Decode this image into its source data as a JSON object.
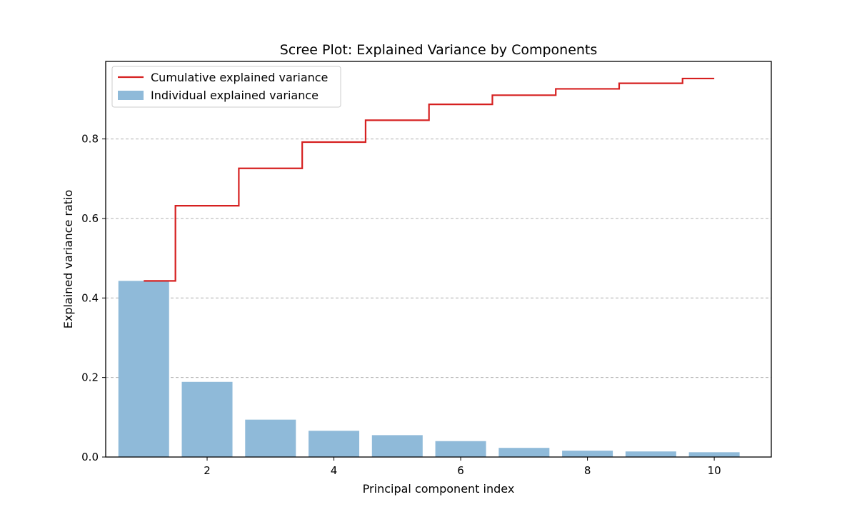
{
  "chart_data": {
    "type": "bar",
    "title": "Scree Plot: Explained Variance by Components",
    "xlabel": "Principal component index",
    "ylabel": "Explained variance ratio",
    "x": [
      1,
      2,
      3,
      4,
      5,
      6,
      7,
      8,
      9,
      10
    ],
    "xlim": [
      0.4,
      10.9
    ],
    "ylim": [
      0.0,
      0.995
    ],
    "xticks": [
      2,
      4,
      6,
      8,
      10
    ],
    "yticks": [
      0.0,
      0.2,
      0.4,
      0.6,
      0.8
    ],
    "ytick_labels": [
      "0.0",
      "0.2",
      "0.4",
      "0.6",
      "0.8"
    ],
    "grid": "y-dashed",
    "legend_position": "top-left",
    "series": [
      {
        "name": "Individual explained variance",
        "kind": "bar",
        "color": "#8fbad9",
        "values": [
          0.443,
          0.189,
          0.094,
          0.066,
          0.055,
          0.04,
          0.023,
          0.016,
          0.014,
          0.012
        ]
      },
      {
        "name": "Cumulative explained variance",
        "kind": "step",
        "color": "#d62020",
        "values": [
          0.443,
          0.632,
          0.726,
          0.792,
          0.847,
          0.887,
          0.91,
          0.926,
          0.94,
          0.952
        ]
      }
    ]
  }
}
